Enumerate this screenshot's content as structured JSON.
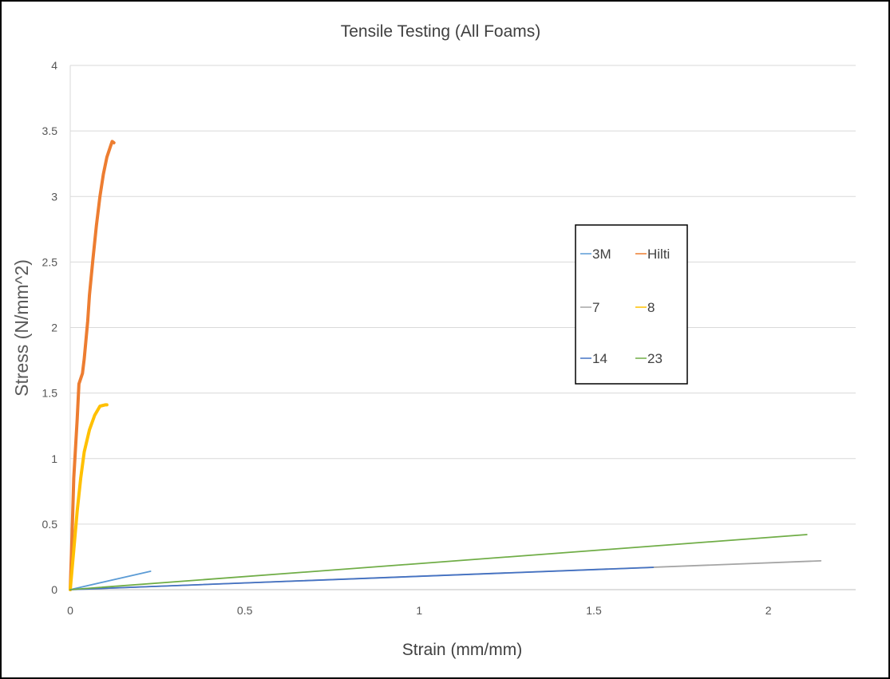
{
  "chart_data": {
    "type": "line",
    "title": "Tensile Testing (All Foams)",
    "xlabel": "Strain (mm/mm)",
    "ylabel": "Stress (N/mm^2)",
    "xlim": [
      0,
      2.25
    ],
    "ylim": [
      0,
      4
    ],
    "x_ticks": [
      "0",
      "0.5",
      "1",
      "1.5",
      "2"
    ],
    "y_ticks": [
      "0",
      "0.5",
      "1",
      "1.5",
      "2",
      "2.5",
      "3",
      "3.5",
      "4"
    ],
    "grid": "horizontal",
    "legend_position": "right-middle",
    "series": [
      {
        "name": "3M",
        "color": "#5b9bd5",
        "points": [
          [
            0,
            0
          ],
          [
            0.23,
            0.14
          ]
        ]
      },
      {
        "name": "Hilti",
        "color": "#ed7d31",
        "points": [
          [
            0,
            0
          ],
          [
            0.005,
            0.4
          ],
          [
            0.01,
            0.85
          ],
          [
            0.02,
            1.3
          ],
          [
            0.025,
            1.57
          ],
          [
            0.035,
            1.65
          ],
          [
            0.04,
            1.76
          ],
          [
            0.05,
            2.05
          ],
          [
            0.055,
            2.25
          ],
          [
            0.065,
            2.52
          ],
          [
            0.075,
            2.78
          ],
          [
            0.085,
            3.0
          ],
          [
            0.095,
            3.17
          ],
          [
            0.105,
            3.3
          ],
          [
            0.115,
            3.38
          ],
          [
            0.12,
            3.42
          ],
          [
            0.125,
            3.41
          ]
        ]
      },
      {
        "name": "7",
        "color": "#a5a5a5",
        "points": [
          [
            0,
            0
          ],
          [
            2.15,
            0.22
          ]
        ]
      },
      {
        "name": "8",
        "color": "#ffc000",
        "points": [
          [
            0,
            0
          ],
          [
            0.01,
            0.3
          ],
          [
            0.02,
            0.6
          ],
          [
            0.03,
            0.85
          ],
          [
            0.04,
            1.05
          ],
          [
            0.055,
            1.22
          ],
          [
            0.07,
            1.33
          ],
          [
            0.085,
            1.4
          ],
          [
            0.1,
            1.41
          ],
          [
            0.105,
            1.41
          ]
        ]
      },
      {
        "name": "14",
        "color": "#4472c4",
        "points": [
          [
            0,
            0
          ],
          [
            1.67,
            0.17
          ]
        ]
      },
      {
        "name": "23",
        "color": "#70ad47",
        "points": [
          [
            0,
            0
          ],
          [
            2.11,
            0.42
          ]
        ]
      }
    ]
  }
}
